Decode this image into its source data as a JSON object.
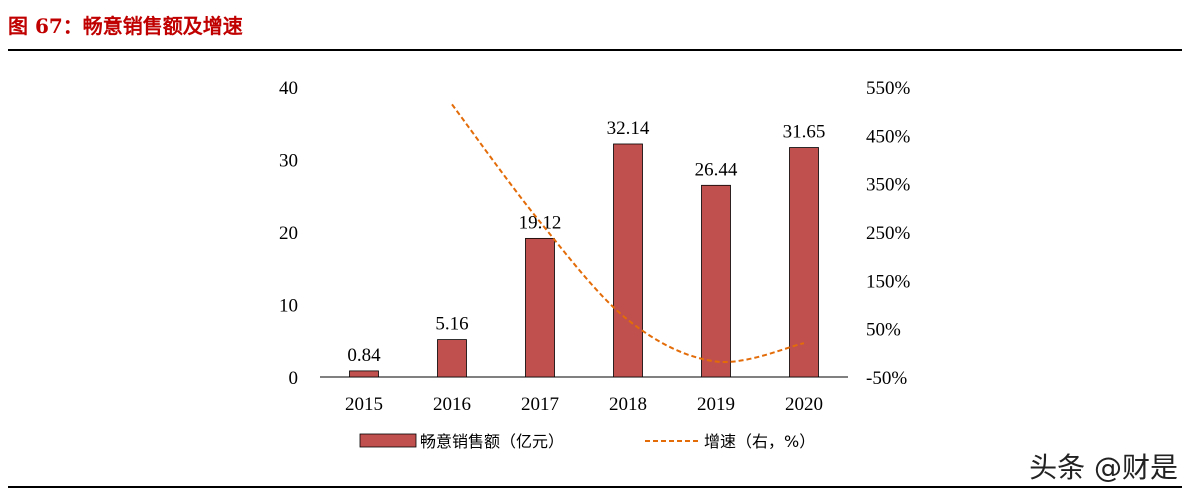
{
  "title": "图 67：畅意销售额及增速",
  "watermark": "头条 @财是",
  "chart_data": {
    "type": "bar+line",
    "categories": [
      "2015",
      "2016",
      "2017",
      "2018",
      "2019",
      "2020"
    ],
    "series": [
      {
        "name": "畅意销售额（亿元）",
        "type": "bar",
        "axis": "left",
        "color": "#c0504d",
        "values": [
          0.84,
          5.16,
          19.12,
          32.14,
          26.44,
          31.65
        ],
        "labels": [
          "0.84",
          "5.16",
          "19.12",
          "32.14",
          "26.44",
          "31.65"
        ]
      },
      {
        "name": "增速（右，%）",
        "type": "line",
        "style": "dashed",
        "axis": "right",
        "color": "#e36c09",
        "values": [
          null,
          514,
          271,
          68,
          -18,
          20
        ]
      }
    ],
    "left_axis": {
      "ylim": [
        0,
        40
      ],
      "ticks": [
        "0",
        "10",
        "20",
        "30",
        "40"
      ]
    },
    "right_axis": {
      "ylim": [
        -50,
        550
      ],
      "ticks": [
        "-50%",
        "50%",
        "150%",
        "250%",
        "350%",
        "450%",
        "550%"
      ]
    },
    "grid": false,
    "legend": "bottom"
  }
}
